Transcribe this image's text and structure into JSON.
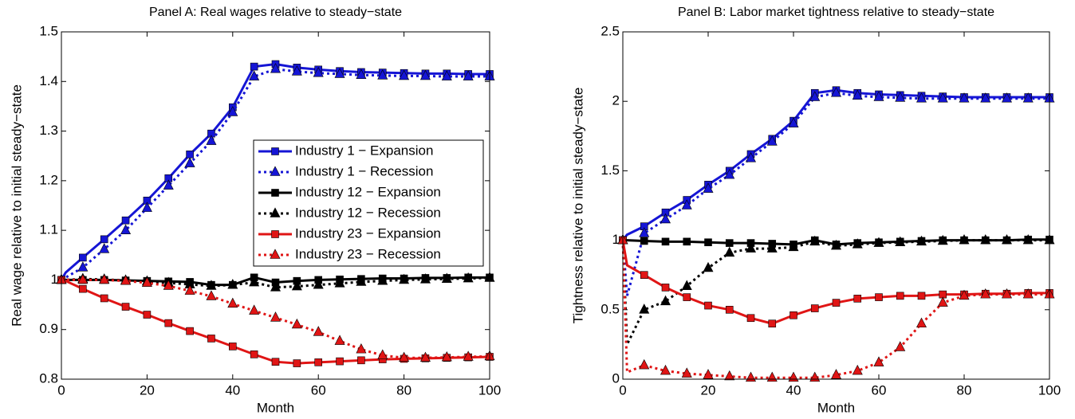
{
  "chart_data": [
    {
      "type": "line",
      "title": "Panel A: Real wages relative to steady−state",
      "xlabel": "Month",
      "ylabel": "Real wage relative to initial steady−state",
      "x": [
        0,
        1,
        5,
        10,
        15,
        20,
        25,
        30,
        35,
        40,
        45,
        50,
        55,
        60,
        65,
        70,
        75,
        80,
        85,
        90,
        95,
        100
      ],
      "xlim": [
        0,
        100
      ],
      "xticks": [
        0,
        20,
        40,
        60,
        80,
        100
      ],
      "ylim": [
        0.8,
        1.5
      ],
      "yticks": [
        0.8,
        0.9,
        1,
        1.1,
        1.2,
        1.3,
        1.4,
        1.5
      ],
      "legend": "center-right",
      "series": [
        {
          "name": "Industry 1 − Expansion",
          "color": "#1515d5",
          "linestyle": "solid",
          "marker": "square",
          "values": [
            1.0,
            1.015,
            1.045,
            1.082,
            1.12,
            1.16,
            1.205,
            1.253,
            1.295,
            1.348,
            1.43,
            1.435,
            1.428,
            1.424,
            1.421,
            1.419,
            1.418,
            1.417,
            1.416,
            1.416,
            1.415,
            1.415
          ]
        },
        {
          "name": "Industry 1 − Recession",
          "color": "#1515d5",
          "linestyle": "dotted",
          "marker": "triangle",
          "values": [
            1.0,
            1.005,
            1.025,
            1.062,
            1.1,
            1.145,
            1.19,
            1.235,
            1.28,
            1.338,
            1.41,
            1.425,
            1.42,
            1.417,
            1.415,
            1.413,
            1.412,
            1.411,
            1.411,
            1.41,
            1.41,
            1.41
          ]
        },
        {
          "name": "Industry 12 − Expansion",
          "color": "#000000",
          "linestyle": "solid",
          "marker": "square",
          "values": [
            1.0,
            1.0,
            1.0,
            1.0,
            0.999,
            0.998,
            0.997,
            0.996,
            0.99,
            0.99,
            1.005,
            0.995,
            0.998,
            1.0,
            1.001,
            1.002,
            1.003,
            1.003,
            1.004,
            1.004,
            1.005,
            1.005
          ]
        },
        {
          "name": "Industry 12 − Recession",
          "color": "#000000",
          "linestyle": "dotted",
          "marker": "triangle",
          "values": [
            1.0,
            1.0,
            1.002,
            1.001,
            0.999,
            0.997,
            0.994,
            0.991,
            0.988,
            0.99,
            0.995,
            0.985,
            0.987,
            0.99,
            0.993,
            0.996,
            0.998,
            1.0,
            1.001,
            1.002,
            1.003,
            1.004
          ]
        },
        {
          "name": "Industry 23 − Expansion",
          "color": "#e01515",
          "linestyle": "solid",
          "marker": "square",
          "values": [
            1.0,
            0.998,
            0.982,
            0.963,
            0.946,
            0.93,
            0.913,
            0.897,
            0.882,
            0.866,
            0.85,
            0.835,
            0.832,
            0.834,
            0.836,
            0.838,
            0.84,
            0.841,
            0.842,
            0.843,
            0.844,
            0.845
          ]
        },
        {
          "name": "Industry 23 − Recession",
          "color": "#e01515",
          "linestyle": "dotted",
          "marker": "triangle",
          "values": [
            1.0,
            1.0,
            1.0,
            1.0,
            0.998,
            0.994,
            0.988,
            0.978,
            0.967,
            0.952,
            0.938,
            0.924,
            0.91,
            0.895,
            0.877,
            0.86,
            0.848,
            0.843,
            0.843,
            0.844,
            0.845,
            0.846
          ]
        }
      ]
    },
    {
      "type": "line",
      "title": "Panel B: Labor market tightness relative to steady−state",
      "xlabel": "Month",
      "ylabel": "Tightness relative to initial steady−state",
      "x": [
        0,
        1,
        5,
        10,
        15,
        20,
        25,
        30,
        35,
        40,
        45,
        50,
        55,
        60,
        65,
        70,
        75,
        80,
        85,
        90,
        95,
        100
      ],
      "xlim": [
        0,
        100
      ],
      "xticks": [
        0,
        20,
        40,
        60,
        80,
        100
      ],
      "ylim": [
        0,
        2.5
      ],
      "yticks": [
        0,
        0.5,
        1,
        1.5,
        2,
        2.5
      ],
      "series": [
        {
          "color": "#1515d5",
          "linestyle": "solid",
          "marker": "square",
          "values": [
            1.0,
            1.04,
            1.1,
            1.2,
            1.29,
            1.4,
            1.5,
            1.62,
            1.73,
            1.86,
            2.06,
            2.08,
            2.06,
            2.05,
            2.045,
            2.04,
            2.035,
            2.03,
            2.03,
            2.03,
            2.03,
            2.03
          ]
        },
        {
          "color": "#1515d5",
          "linestyle": "dotted",
          "marker": "triangle",
          "values": [
            1.0,
            0.6,
            1.05,
            1.15,
            1.25,
            1.37,
            1.47,
            1.59,
            1.71,
            1.84,
            2.03,
            2.06,
            2.04,
            2.03,
            2.025,
            2.02,
            2.02,
            2.02,
            2.02,
            2.02,
            2.02,
            2.02
          ]
        },
        {
          "color": "#000000",
          "linestyle": "solid",
          "marker": "square",
          "values": [
            1.0,
            1.0,
            0.995,
            0.99,
            0.99,
            0.985,
            0.98,
            0.98,
            0.975,
            0.97,
            1.0,
            0.97,
            0.98,
            0.985,
            0.99,
            0.995,
            1.0,
            1.0,
            1.0,
            1.0,
            1.005,
            1.005
          ]
        },
        {
          "color": "#000000",
          "linestyle": "dotted",
          "marker": "triangle",
          "values": [
            1.0,
            0.25,
            0.5,
            0.56,
            0.67,
            0.8,
            0.91,
            0.94,
            0.94,
            0.95,
            0.99,
            0.96,
            0.97,
            0.98,
            0.985,
            0.99,
            0.995,
            1.0,
            1.0,
            1.0,
            1.0,
            1.0
          ]
        },
        {
          "color": "#e01515",
          "linestyle": "solid",
          "marker": "square",
          "values": [
            1.0,
            0.82,
            0.75,
            0.66,
            0.59,
            0.53,
            0.5,
            0.44,
            0.4,
            0.46,
            0.51,
            0.55,
            0.58,
            0.59,
            0.6,
            0.6,
            0.61,
            0.61,
            0.615,
            0.615,
            0.62,
            0.62
          ]
        },
        {
          "color": "#e01515",
          "linestyle": "dotted",
          "marker": "triangle",
          "values": [
            1.0,
            0.05,
            0.1,
            0.06,
            0.04,
            0.03,
            0.02,
            0.01,
            0.01,
            0.01,
            0.01,
            0.03,
            0.06,
            0.12,
            0.23,
            0.4,
            0.55,
            0.6,
            0.61,
            0.61,
            0.61,
            0.61
          ]
        }
      ]
    }
  ]
}
